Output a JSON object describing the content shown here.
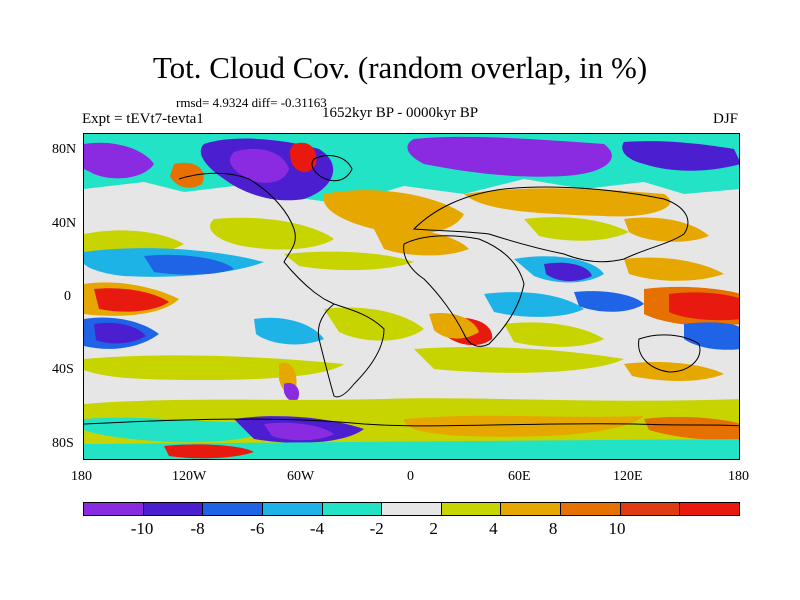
{
  "title": "Tot. Cloud Cov. (random overlap, in %)",
  "stats": "rmsd= 4.9324  diff= -0.31163",
  "expt_label": "Expt = tEVt7-tevta1",
  "period_label": "1652kyr BP - 0000kyr BP",
  "season_label": "DJF",
  "lat_labels": [
    "80N",
    "40N",
    "0",
    "40S",
    "80S"
  ],
  "lon_labels": [
    "180",
    "120W",
    "60W",
    "0",
    "60E",
    "120E",
    "180"
  ],
  "colorbar": {
    "colors": [
      "#8a2be2",
      "#4b1fd0",
      "#1f64e6",
      "#1eb3e6",
      "#22e3c6",
      "#e6e6e6",
      "#c8d400",
      "#e6a800",
      "#e67000",
      "#e03b12",
      "#e8190e"
    ],
    "labels": [
      "-10",
      "-8",
      "-6",
      "-4",
      "-2",
      "2",
      "4",
      "8",
      "10"
    ]
  }
}
